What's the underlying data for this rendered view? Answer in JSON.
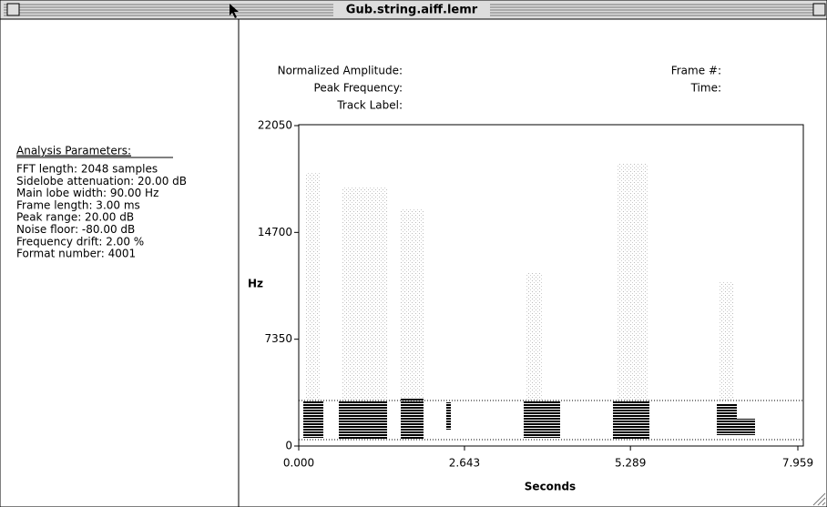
{
  "window": {
    "title": "Gub.string.aiff.lemr"
  },
  "parameters": {
    "heading": "Analysis Parameters:",
    "lines": [
      "FFT length: 2048 samples",
      "Sidelobe attenuation: 20.00 dB",
      "Main lobe width: 90.00 Hz",
      "Frame length: 3.00 ms",
      "Peak range: 20.00 dB",
      "Noise floor: -80.00 dB",
      "Frequency drift: 2.00 %",
      "Format number: 4001"
    ]
  },
  "readout": {
    "normalized_amplitude": "Normalized Amplitude:",
    "peak_frequency": "Peak Frequency:",
    "track_label": "Track Label:",
    "frame": "Frame #:",
    "time": "Time:"
  },
  "chart_data": {
    "type": "spectrogram",
    "x_label": "Seconds",
    "y_label": "Hz",
    "xlim": [
      0,
      7.959
    ],
    "ylim": [
      0,
      22050
    ],
    "xticks": [
      {
        "value": 0,
        "label": "0.000"
      },
      {
        "value": 2.643,
        "label": "2.643"
      },
      {
        "value": 5.289,
        "label": "5.289"
      },
      {
        "value": 7.959,
        "label": "7.959"
      }
    ],
    "yticks": [
      0,
      7350,
      14700,
      22050
    ]
  }
}
